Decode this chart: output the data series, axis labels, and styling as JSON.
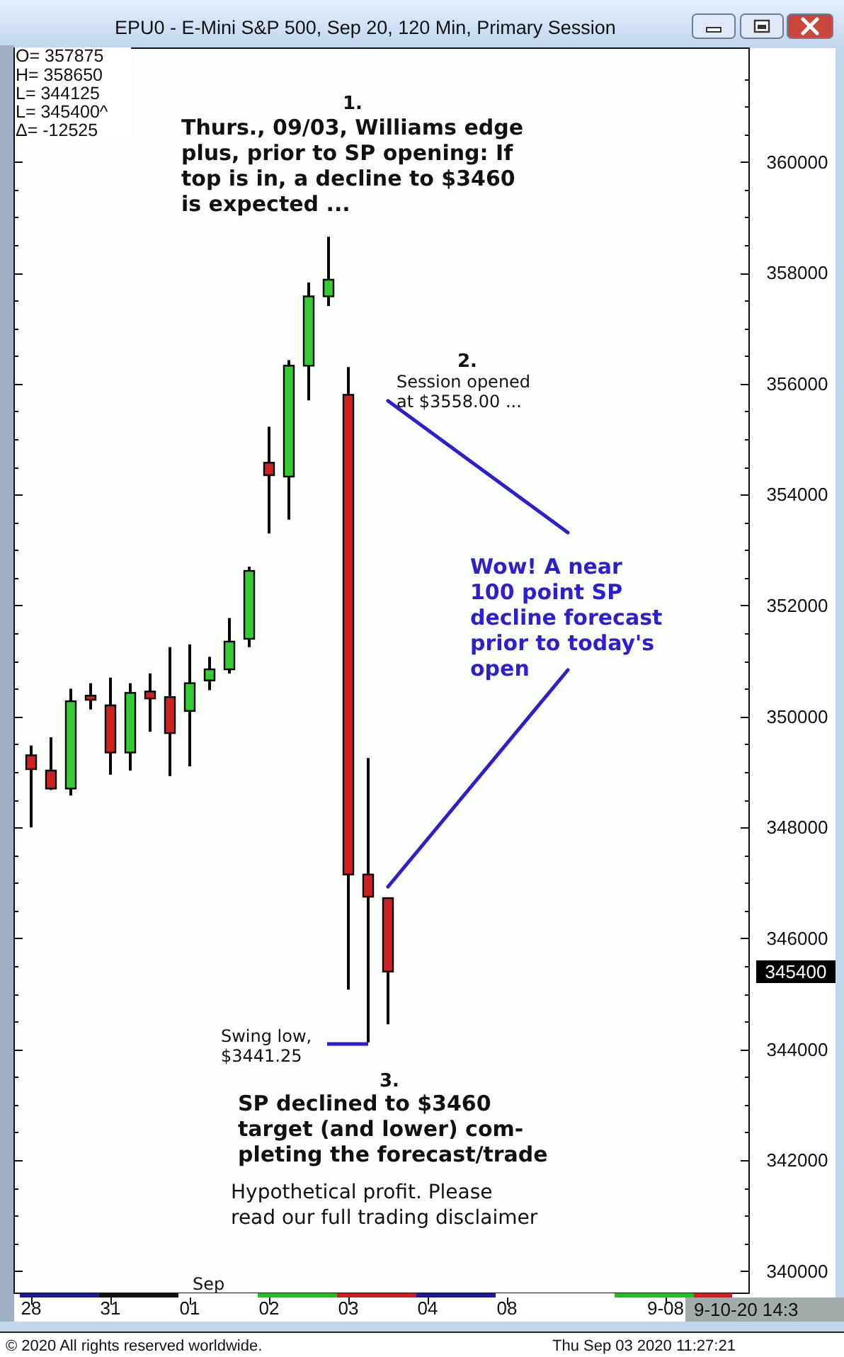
{
  "chart_data": {
    "type": "candlestick",
    "title": "EPU0 - E-Mini S&P 500, Sep 20, 120 Min, Primary Session",
    "categories": [
      "28",
      null,
      null,
      null,
      "31",
      null,
      null,
      null,
      "01",
      null,
      null,
      null,
      "02",
      null,
      null,
      null,
      "03",
      null,
      null,
      null,
      "04",
      null,
      null,
      null,
      "08",
      null,
      null,
      null,
      null,
      null,
      null,
      null,
      "9-08",
      null,
      null,
      null
    ],
    "ohlc": [
      [
        349300,
        349475,
        348000,
        349050
      ],
      [
        349025,
        349625,
        348675,
        348700
      ],
      [
        348700,
        350500,
        348575,
        350275
      ],
      [
        350375,
        350600,
        350125,
        350300
      ],
      [
        350200,
        350700,
        348950,
        349350
      ],
      [
        349350,
        350600,
        349025,
        350425
      ],
      [
        350450,
        350775,
        349725,
        350325
      ],
      [
        350350,
        351250,
        348925,
        349700
      ],
      [
        350100,
        351300,
        349100,
        350600
      ],
      [
        350650,
        351075,
        350475,
        350850
      ],
      [
        350850,
        351775,
        350775,
        351350
      ],
      [
        351400,
        352700,
        351250,
        352625
      ],
      [
        354575,
        355225,
        353300,
        354350
      ],
      [
        354325,
        356425,
        353550,
        356325
      ],
      [
        356325,
        357825,
        355700,
        357575
      ],
      [
        357575,
        358650,
        357400,
        357875
      ],
      [
        355800,
        356300,
        345075,
        347150
      ],
      [
        347150,
        349250,
        344125,
        346750
      ],
      [
        346725,
        346725,
        344450,
        345400
      ],
      null,
      null,
      null,
      null,
      null,
      null,
      null,
      null,
      null,
      null,
      null,
      null,
      null,
      null,
      null,
      null,
      null
    ],
    "colors": [
      "#cc2222",
      "#cc2222",
      "#33cc33",
      "#cc2222",
      "#cc2222",
      "#33cc33",
      "#cc2222",
      "#cc2222",
      "#33cc33",
      "#33cc33",
      "#33cc33",
      "#33cc33",
      "#cc2222",
      "#33cc33",
      "#33cc33",
      "#33cc33",
      "#cc2222",
      "#cc2222",
      "#cc2222",
      null,
      null,
      null,
      null,
      null,
      null,
      null,
      null,
      null,
      null,
      null,
      null,
      null,
      null,
      null,
      null,
      null
    ],
    "ylim": [
      339600,
      362050
    ],
    "yticks": [
      340000,
      {
        "value": 340500,
        "label": null
      },
      {
        "value": 341000,
        "label": null
      },
      {
        "value": 341500,
        "label": null
      },
      342000,
      {
        "value": 342500,
        "label": null
      },
      {
        "value": 343000,
        "label": null
      },
      {
        "value": 343500,
        "label": null
      },
      344000,
      {
        "value": 344500,
        "label": null
      },
      {
        "value": 345000,
        "label": null
      },
      {
        "value": 345500,
        "label": null
      },
      346000,
      {
        "value": 346500,
        "label": null
      },
      {
        "value": 347000,
        "label": null
      },
      {
        "value": 347500,
        "label": null
      },
      348000,
      {
        "value": 348500,
        "label": null
      },
      {
        "value": 349000,
        "label": null
      },
      {
        "value": 349500,
        "label": null
      },
      350000,
      {
        "value": 350500,
        "label": null
      },
      {
        "value": 351000,
        "label": null
      },
      {
        "value": 351500,
        "label": null
      },
      352000,
      {
        "value": 352500,
        "label": null
      },
      {
        "value": 353000,
        "label": null
      },
      {
        "value": 353500,
        "label": null
      },
      354000,
      {
        "value": 354500,
        "label": null
      },
      {
        "value": 355000,
        "label": null
      },
      {
        "value": 355500,
        "label": null
      },
      356000,
      {
        "value": 356500,
        "label": null
      },
      {
        "value": 357000,
        "label": null
      },
      {
        "value": 357500,
        "label": null
      },
      358000,
      {
        "value": 358500,
        "label": null
      },
      {
        "value": 359000,
        "label": null
      },
      {
        "value": 359500,
        "label": null
      },
      360000,
      {
        "value": 360500,
        "label": null
      },
      {
        "value": 361000,
        "label": null
      },
      {
        "value": 361500,
        "label": null
      }
    ],
    "annotations": [
      "O= 357875",
      "H= 358650",
      "L= 344125",
      "L= 345400^",
      "Δ= -12525",
      "1.",
      "Thurs., 09/03, Williams edge\nplus, prior to SP opening: If\ntop is in, a decline to $3460\nis expected ...",
      "2.",
      "Session opened\nat $3558.00 ...",
      "Wow! A near\n100 point SP\ndecline forecast\nprior to today's\nopen",
      "Swing low,\n$3441.25",
      "3.",
      "SP declined to $3460\ntarget (and lower) com-\npleting the forecast/trade",
      "Hypothetical profit. Please\nread our full trading disclaimer",
      "Sep",
      "345400",
      "9-10-20 14:3",
      "© 2020 All rights reserved worldwide.",
      "Thu Sep 03 2020 11:27:21"
    ]
  }
}
